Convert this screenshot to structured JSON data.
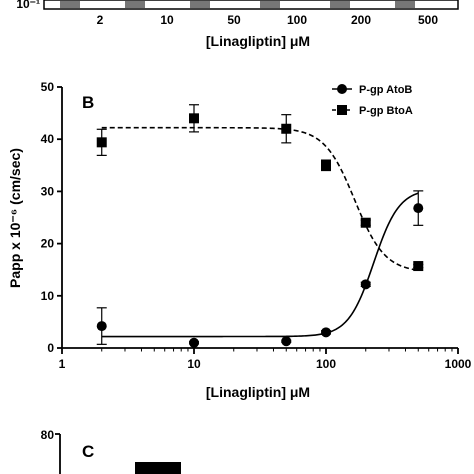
{
  "top_panel": {
    "y_tick_label": "10⁻¹",
    "x_tick_labels": [
      "2",
      "10",
      "50",
      "100",
      "200",
      "500"
    ],
    "xlabel": "[Linagliptin] μM"
  },
  "panel_b": {
    "letter": "B",
    "chart_data": {
      "type": "scatter",
      "xscale": "log",
      "xlim": [
        1,
        1000
      ],
      "ylim": [
        0,
        50
      ],
      "x_ticks": [
        1,
        10,
        100,
        1000
      ],
      "x_tick_labels": [
        "1",
        "10",
        "100",
        "1000"
      ],
      "y_ticks": [
        0,
        10,
        20,
        30,
        40,
        50
      ],
      "y_tick_labels": [
        "0",
        "10",
        "20",
        "30",
        "40",
        "50"
      ],
      "xlabel": "[Linagliptin] μM",
      "ylabel": "Papp x 10⁻⁶ (cm/sec)",
      "legend_position": "top-right",
      "grid": false,
      "series": [
        {
          "name": "P-gp AtoB",
          "marker": "circle",
          "curve": "solid",
          "color": "#000000",
          "x": [
            2,
            10,
            50,
            100,
            200,
            500
          ],
          "y": [
            4.2,
            1.0,
            1.3,
            3.0,
            12.2,
            26.8
          ],
          "err": [
            3.5,
            0.2,
            0.2,
            0.3,
            0.4,
            3.3
          ],
          "fit": {
            "bottom": 2.2,
            "top": 30.5,
            "ec50": 230,
            "hill": 4.5
          }
        },
        {
          "name": "P-gp BtoA",
          "marker": "square",
          "curve": "dashed",
          "color": "#000000",
          "x": [
            2,
            10,
            50,
            100,
            200,
            500
          ],
          "y": [
            39.4,
            44.0,
            42.0,
            35.0,
            24.0,
            15.7
          ],
          "err": [
            2.5,
            2.6,
            2.7,
            1.0,
            0.5,
            0.3
          ],
          "fit": {
            "top": 42.2,
            "bottom": 14.5,
            "ec50": 165,
            "hill": 3.8
          }
        }
      ]
    }
  },
  "panel_c": {
    "letter": "C",
    "y_tick_label": "80"
  }
}
